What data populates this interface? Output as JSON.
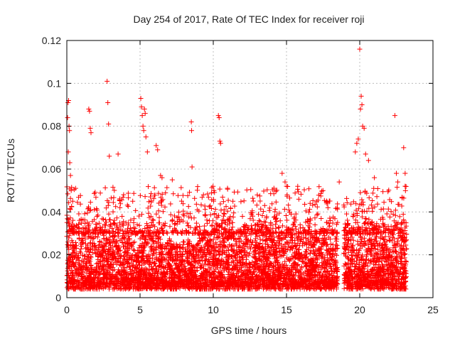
{
  "chart_data": {
    "type": "scatter",
    "title": "Day 254 of 2017, Rate Of TEC Index for receiver roji",
    "xlabel": "GPS time / hours",
    "ylabel": "ROTI / TECUs",
    "xlim": [
      0,
      25
    ],
    "ylim": [
      0,
      0.12
    ],
    "xticks": [
      0,
      5,
      10,
      15,
      20,
      25
    ],
    "yticks": [
      0,
      0.02,
      0.04,
      0.06,
      0.08,
      0.1,
      0.12
    ],
    "xtick_labels": [
      "0",
      "5",
      "10",
      "15",
      "20",
      "25"
    ],
    "ytick_labels": [
      "0",
      "0.02",
      "0.04",
      "0.06",
      "0.08",
      "0.1",
      "0.12"
    ],
    "grid": true,
    "marker": "+",
    "color": "#ff0000",
    "series": [
      {
        "name": "ROTI",
        "points": [
          [
            0.05,
            0.084
          ],
          [
            0.08,
            0.091
          ],
          [
            0.12,
            0.092
          ],
          [
            0.15,
            0.08
          ],
          [
            0.18,
            0.078
          ],
          [
            0.1,
            0.068
          ],
          [
            0.2,
            0.063
          ],
          [
            0.25,
            0.057
          ],
          [
            0.3,
            0.05
          ],
          [
            0.4,
            0.045
          ],
          [
            0.6,
            0.051
          ],
          [
            1.5,
            0.088
          ],
          [
            1.55,
            0.087
          ],
          [
            1.6,
            0.079
          ],
          [
            1.65,
            0.077
          ],
          [
            2.75,
            0.101
          ],
          [
            2.8,
            0.091
          ],
          [
            2.85,
            0.081
          ],
          [
            2.9,
            0.066
          ],
          [
            3.5,
            0.067
          ],
          [
            4.5,
            0.045
          ],
          [
            5.05,
            0.093
          ],
          [
            5.1,
            0.089
          ],
          [
            5.15,
            0.085
          ],
          [
            5.2,
            0.08
          ],
          [
            5.25,
            0.078
          ],
          [
            5.3,
            0.088
          ],
          [
            5.35,
            0.086
          ],
          [
            5.4,
            0.075
          ],
          [
            5.5,
            0.068
          ],
          [
            6.1,
            0.071
          ],
          [
            6.2,
            0.069
          ],
          [
            6.4,
            0.057
          ],
          [
            6.5,
            0.056
          ],
          [
            7.2,
            0.055
          ],
          [
            8.5,
            0.082
          ],
          [
            8.52,
            0.078
          ],
          [
            8.55,
            0.061
          ],
          [
            10.35,
            0.085
          ],
          [
            10.4,
            0.084
          ],
          [
            10.45,
            0.073
          ],
          [
            10.5,
            0.072
          ],
          [
            14.7,
            0.058
          ],
          [
            14.9,
            0.054
          ],
          [
            15.0,
            0.052
          ],
          [
            18.6,
            0.054
          ],
          [
            19.7,
            0.068
          ],
          [
            19.8,
            0.072
          ],
          [
            19.9,
            0.074
          ],
          [
            20.0,
            0.116
          ],
          [
            20.05,
            0.088
          ],
          [
            20.1,
            0.094
          ],
          [
            20.15,
            0.09
          ],
          [
            20.2,
            0.08
          ],
          [
            20.3,
            0.079
          ],
          [
            20.4,
            0.067
          ],
          [
            20.6,
            0.064
          ],
          [
            21.0,
            0.056
          ],
          [
            22.4,
            0.085
          ],
          [
            22.5,
            0.058
          ],
          [
            22.6,
            0.054
          ],
          [
            23.0,
            0.07
          ],
          [
            23.1,
            0.058
          ],
          [
            23.1,
            0.052
          ]
        ]
      }
    ]
  }
}
